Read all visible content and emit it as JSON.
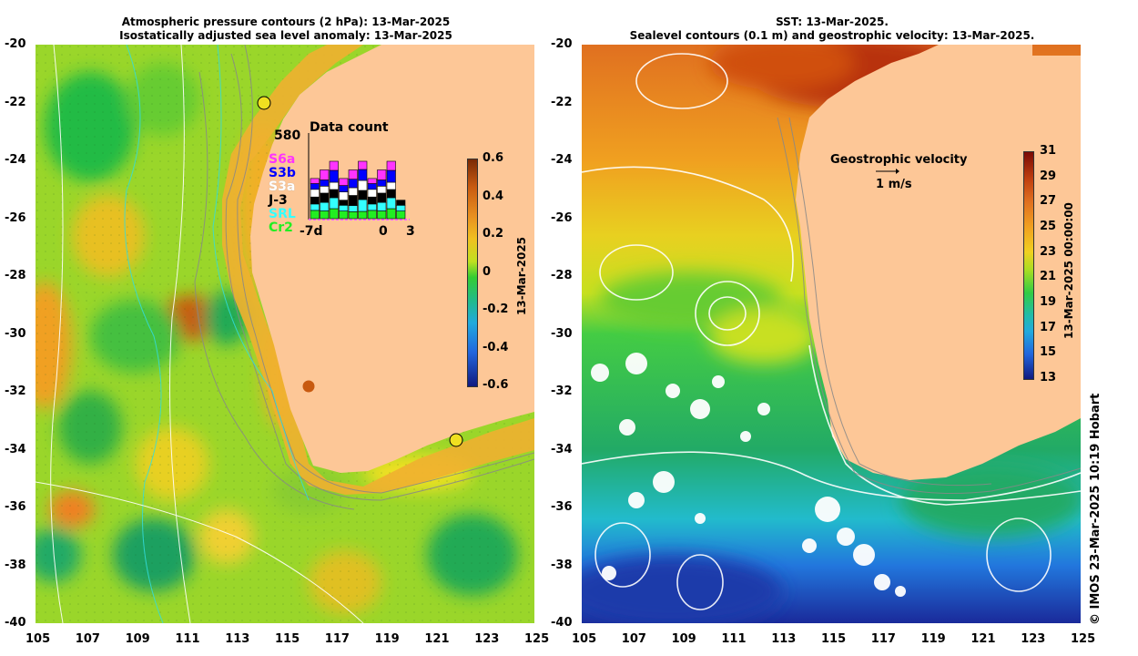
{
  "left_panel": {
    "title_line1": "Atmospheric pressure contours (2 hPa): 13-Mar-2025",
    "title_line2": "Isostatically adjusted sea level anomaly: 13-Mar-2025",
    "colorbar": {
      "ticks": [
        "0.6",
        "0.4",
        "0.2",
        "0",
        "-0.2",
        "-0.4",
        "-0.6"
      ],
      "values": [
        0.6,
        0.4,
        0.2,
        0,
        -0.2,
        -0.4,
        -0.6
      ],
      "label": "13-Mar-2025"
    },
    "data_count": {
      "title": "Data count",
      "max_label": "580",
      "x_labels": [
        "-7d",
        "0",
        "3"
      ],
      "missions": [
        {
          "name": "S6a",
          "color": "#ff33ff"
        },
        {
          "name": "S3b",
          "color": "#0000ff"
        },
        {
          "name": "S3a",
          "color": "#ffffff"
        },
        {
          "name": "J-3",
          "color": "#000000"
        },
        {
          "name": "SRL",
          "color": "#33ffff"
        },
        {
          "name": "Cr2",
          "color": "#22ee22"
        }
      ]
    }
  },
  "right_panel": {
    "title_line1": "SST: 13-Mar-2025.",
    "title_line2": "Sealevel contours (0.1 m) and geostrophic velocity: 13-Mar-2025.",
    "colorbar": {
      "ticks": [
        "31",
        "29",
        "27",
        "25",
        "23",
        "21",
        "19",
        "17",
        "15",
        "13"
      ],
      "values": [
        31,
        29,
        27,
        25,
        23,
        21,
        19,
        17,
        15,
        13
      ],
      "label": "13-Mar-2025 00:00:00"
    },
    "velocity_legend": {
      "title": "Geostrophic velocity",
      "scale": "1 m/s"
    }
  },
  "axes": {
    "x_ticks": [
      "105",
      "107",
      "109",
      "111",
      "113",
      "115",
      "117",
      "119",
      "121",
      "123",
      "125"
    ],
    "y_ticks": [
      "-20",
      "-22",
      "-24",
      "-26",
      "-28",
      "-30",
      "-32",
      "-34",
      "-36",
      "-38",
      "-40"
    ]
  },
  "credit": "© IMOS 23-Mar-2025 10:19 Hobart",
  "colors": {
    "land": "#fdc797",
    "ssl_zero": "#33cc33",
    "accent": "#ff8800"
  }
}
